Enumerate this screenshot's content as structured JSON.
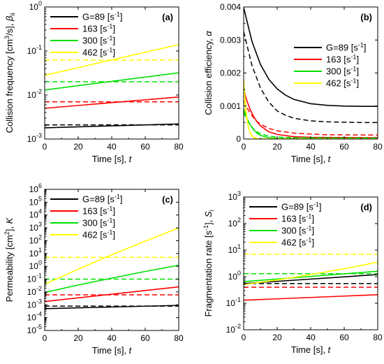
{
  "chart_data": [
    {
      "type": "line",
      "panel": "(a)",
      "xlabel": "Time [s], t",
      "ylabel": "Collision frequency [cm3/s], βii",
      "xlim": [
        0,
        80
      ],
      "ylim": [
        0.001,
        1
      ],
      "yscale": "log",
      "x_ticks": [
        0,
        20,
        40,
        60,
        80
      ],
      "y_ticks": [
        0.001,
        0.01,
        0.1,
        1
      ],
      "legend_position": "top-left",
      "legend": [
        "G=89 [s-1]",
        "163 [s-1]",
        "300 [s-1]",
        "462 [s-1]"
      ],
      "series": [
        {
          "name": "G=89 [s-1]",
          "color": "#000000",
          "style": "solid",
          "x": [
            0,
            80
          ],
          "values": [
            0.0018,
            0.0022
          ]
        },
        {
          "name": "G=89 [s-1]",
          "color": "#000000",
          "style": "dashed",
          "x": [
            0,
            80
          ],
          "values": [
            0.0021,
            0.0021
          ]
        },
        {
          "name": "163 [s-1]",
          "color": "#ff0000",
          "style": "solid",
          "x": [
            0,
            80
          ],
          "values": [
            0.005,
            0.009
          ]
        },
        {
          "name": "163 [s-1]",
          "color": "#ff0000",
          "style": "dashed",
          "x": [
            0,
            80
          ],
          "values": [
            0.007,
            0.007
          ]
        },
        {
          "name": "300 [s-1]",
          "color": "#00e000",
          "style": "solid",
          "x": [
            0,
            80
          ],
          "values": [
            0.013,
            0.032
          ]
        },
        {
          "name": "300 [s-1]",
          "color": "#00e000",
          "style": "dashed",
          "x": [
            0,
            80
          ],
          "values": [
            0.02,
            0.02
          ]
        },
        {
          "name": "462 [s-1]",
          "color": "#ffff00",
          "style": "solid",
          "x": [
            0,
            80
          ],
          "values": [
            0.028,
            0.14
          ]
        },
        {
          "name": "462 [s-1]",
          "color": "#ffff00",
          "style": "dashed",
          "x": [
            0,
            80
          ],
          "values": [
            0.062,
            0.062
          ]
        }
      ]
    },
    {
      "type": "line",
      "panel": "(b)",
      "xlabel": "Time [s], t",
      "ylabel": "Collision efficiency, α",
      "xlim": [
        0,
        80
      ],
      "ylim": [
        0,
        0.004
      ],
      "yscale": "linear",
      "x_ticks": [
        0,
        20,
        40,
        60,
        80
      ],
      "y_ticks": [
        0,
        0.001,
        0.002,
        0.003,
        0.004
      ],
      "legend_position": "right",
      "legend": [
        "G=89 [s-1]",
        "163 [s-1]",
        "300 [s-1]",
        "462 [s-1]"
      ],
      "series": [
        {
          "name": "G=89 [s-1]",
          "color": "#000000",
          "style": "solid",
          "x": [
            0,
            5,
            10,
            15,
            20,
            25,
            30,
            40,
            50,
            60,
            70,
            80
          ],
          "values": [
            0.00398,
            0.00295,
            0.00226,
            0.00181,
            0.00152,
            0.00133,
            0.0012,
            0.00107,
            0.00102,
            0.001,
            0.00099,
            0.00099
          ]
        },
        {
          "name": "G=89 [s-1]",
          "color": "#000000",
          "style": "dashed",
          "x": [
            0,
            5,
            10,
            15,
            20,
            25,
            30,
            40,
            50,
            60,
            70,
            80
          ],
          "values": [
            0.00325,
            0.00222,
            0.00155,
            0.00112,
            0.00085,
            0.00072,
            0.00063,
            0.00055,
            0.00052,
            0.00051,
            0.0005,
            0.0005
          ]
        },
        {
          "name": "163 [s-1]",
          "color": "#ff0000",
          "style": "solid",
          "x": [
            0,
            2,
            4,
            6,
            8,
            10,
            15,
            20,
            30,
            40,
            80
          ],
          "values": [
            0.0015,
            0.00115,
            0.00088,
            0.00068,
            0.00052,
            0.0004,
            0.00022,
            0.00014,
            7e-05,
            5e-05,
            4e-05
          ]
        },
        {
          "name": "163 [s-1]",
          "color": "#ff0000",
          "style": "dashed",
          "x": [
            0,
            2,
            4,
            6,
            8,
            10,
            15,
            20,
            30,
            40,
            50,
            80
          ],
          "values": [
            0.00115,
            0.00095,
            0.00078,
            0.00064,
            0.00053,
            0.00045,
            0.00032,
            0.00025,
            0.00018,
            0.00015,
            0.00013,
            0.00012
          ]
        },
        {
          "name": "300 [s-1]",
          "color": "#00e000",
          "style": "solid",
          "x": [
            0,
            2,
            4,
            6,
            8,
            10,
            15,
            20,
            80
          ],
          "values": [
            0.0009,
            0.00062,
            0.00042,
            0.00028,
            0.00018,
            0.00011,
            4e-05,
            2e-05,
            1e-05
          ]
        },
        {
          "name": "300 [s-1]",
          "color": "#00e000",
          "style": "dashed",
          "x": [
            0,
            2,
            4,
            6,
            8,
            10,
            15,
            20,
            30,
            80
          ],
          "values": [
            0.0008,
            0.00058,
            0.00042,
            0.0003,
            0.00022,
            0.00016,
            9e-05,
            6e-05,
            4e-05,
            3e-05
          ]
        },
        {
          "name": "462 [s-1]",
          "color": "#ffff00",
          "style": "solid",
          "x": [
            0,
            1,
            2,
            3,
            4,
            6,
            8,
            10,
            80
          ],
          "values": [
            0.0018,
            0.0011,
            0.0006,
            0.00032,
            0.00016,
            4e-05,
            1e-05,
            0.0,
            0.0
          ]
        },
        {
          "name": "462 [s-1]",
          "color": "#ffff00",
          "style": "dashed",
          "x": [
            0,
            1,
            2,
            3,
            4,
            6,
            8,
            10,
            80
          ],
          "values": [
            0.0014,
            0.0009,
            0.00055,
            0.00032,
            0.00018,
            6e-05,
            2e-05,
            1e-05,
            0.0
          ]
        }
      ]
    },
    {
      "type": "line",
      "panel": "(c)",
      "xlabel": "Time [s], t",
      "ylabel": "Permeability [cm2], K",
      "xlim": [
        0,
        80
      ],
      "ylim": [
        1e-05,
        1000000
      ],
      "yscale": "log",
      "x_ticks": [
        0,
        20,
        40,
        60,
        80
      ],
      "y_ticks": [
        1e-05,
        0.0001,
        0.001,
        0.01,
        0.1,
        1,
        10,
        100,
        1000,
        10000,
        100000,
        1000000
      ],
      "legend_position": "top-left",
      "legend": [
        "G=89 [s-1]",
        "163 [s-1]",
        "300 [s-1]",
        "462 [s-1]"
      ],
      "series": [
        {
          "name": "G=89 [s-1]",
          "color": "#000000",
          "style": "solid",
          "x": [
            0,
            80
          ],
          "values": [
            0.0005,
            0.0009
          ]
        },
        {
          "name": "G=89 [s-1]",
          "color": "#000000",
          "style": "dashed",
          "x": [
            0,
            80
          ],
          "values": [
            0.0008,
            0.0008
          ]
        },
        {
          "name": "163 [s-1]",
          "color": "#ff0000",
          "style": "solid",
          "x": [
            0,
            80
          ],
          "values": [
            0.0018,
            0.025
          ]
        },
        {
          "name": "163 [s-1]",
          "color": "#ff0000",
          "style": "dashed",
          "x": [
            0,
            80
          ],
          "values": [
            0.006,
            0.006
          ]
        },
        {
          "name": "300 [s-1]",
          "color": "#00e000",
          "style": "solid",
          "x": [
            0,
            20,
            40,
            60,
            80
          ],
          "values": [
            0.009,
            0.035,
            0.12,
            0.4,
            1.2
          ]
        },
        {
          "name": "300 [s-1]",
          "color": "#00e000",
          "style": "dashed",
          "x": [
            0,
            80
          ],
          "values": [
            0.1,
            0.1
          ]
        },
        {
          "name": "462 [s-1]",
          "color": "#ffff00",
          "style": "solid",
          "x": [
            0,
            20,
            40,
            60,
            80
          ],
          "values": [
            0.04,
            0.6,
            8,
            90,
            1000
          ]
        },
        {
          "name": "462 [s-1]",
          "color": "#ffff00",
          "style": "dashed",
          "x": [
            0,
            80
          ],
          "values": [
            5,
            5
          ]
        }
      ]
    },
    {
      "type": "line",
      "panel": "(d)",
      "xlabel": "Time [s], t",
      "ylabel": "Fragmentation rate [s-1], Si",
      "xlim": [
        0,
        80
      ],
      "ylim": [
        0.01,
        1000
      ],
      "yscale": "log",
      "x_ticks": [
        0,
        20,
        40,
        60,
        80
      ],
      "y_ticks": [
        0.01,
        0.1,
        1,
        10,
        100,
        1000
      ],
      "legend_position": "top-left",
      "legend": [
        "G=89 [s-1]",
        "163 [s-1]",
        "300 [s-1]",
        "462 [s-1]"
      ],
      "series": [
        {
          "name": "G=89 [s-1]",
          "color": "#000000",
          "style": "solid",
          "x": [
            0,
            80
          ],
          "values": [
            0.55,
            1.2
          ]
        },
        {
          "name": "G=89 [s-1]",
          "color": "#000000",
          "style": "dashed",
          "x": [
            0,
            80
          ],
          "values": [
            0.55,
            0.55
          ]
        },
        {
          "name": "163 [s-1]",
          "color": "#ff0000",
          "style": "solid",
          "x": [
            0,
            80
          ],
          "values": [
            0.13,
            0.21
          ]
        },
        {
          "name": "163 [s-1]",
          "color": "#ff0000",
          "style": "dashed",
          "x": [
            0,
            80
          ],
          "values": [
            0.4,
            0.4
          ]
        },
        {
          "name": "300 [s-1]",
          "color": "#00e000",
          "style": "solid",
          "x": [
            0,
            80
          ],
          "values": [
            0.65,
            1.6
          ]
        },
        {
          "name": "300 [s-1]",
          "color": "#00e000",
          "style": "dashed",
          "x": [
            0,
            80
          ],
          "values": [
            1.3,
            1.3
          ]
        },
        {
          "name": "462 [s-1]",
          "color": "#ffff00",
          "style": "solid",
          "x": [
            0,
            20,
            40,
            60,
            80
          ],
          "values": [
            0.5,
            0.75,
            1.2,
            2.0,
            3.5
          ]
        },
        {
          "name": "462 [s-1]",
          "color": "#ffff00",
          "style": "dashed",
          "x": [
            0,
            80
          ],
          "values": [
            7,
            7
          ]
        }
      ]
    }
  ]
}
